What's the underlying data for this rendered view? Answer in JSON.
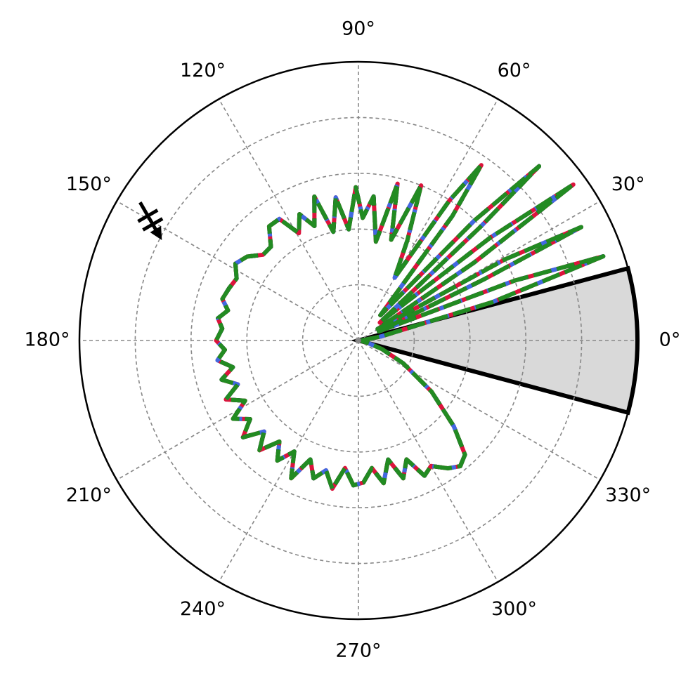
{
  "chart_data": {
    "type": "polar",
    "xlim": [
      0,
      360
    ],
    "xticks": [
      {
        "value": 0,
        "label": "0°"
      },
      {
        "value": 30,
        "label": "30°"
      },
      {
        "value": 60,
        "label": "60°"
      },
      {
        "value": 90,
        "label": "90°"
      },
      {
        "value": 120,
        "label": "120°"
      },
      {
        "value": 150,
        "label": "150°"
      },
      {
        "value": 180,
        "label": "180°"
      },
      {
        "value": 210,
        "label": "210°"
      },
      {
        "value": 240,
        "label": "240°"
      },
      {
        "value": 270,
        "label": "270°"
      },
      {
        "value": 300,
        "label": "300°"
      },
      {
        "value": 330,
        "label": "330°"
      }
    ],
    "ylim": [
      0,
      5
    ],
    "yticks": [
      1,
      2,
      3,
      4
    ],
    "grid": true,
    "wedge": {
      "theta": 0,
      "width": 30,
      "r": 5,
      "color": "#d9d9d9",
      "edgecolor": "#000000"
    },
    "marker": {
      "theta": 150,
      "r": 4.3,
      "color": "#000000"
    },
    "x": [
      0,
      10,
      16,
      19,
      21,
      24,
      26,
      27,
      29,
      31,
      34,
      36,
      38,
      40,
      43,
      44,
      46,
      49,
      53,
      55,
      57,
      60,
      64,
      68,
      72,
      76,
      80,
      84,
      88,
      91,
      95,
      99,
      103,
      107,
      111,
      115,
      119,
      123,
      128,
      133,
      138,
      143,
      148,
      153,
      158,
      163,
      167,
      171,
      175,
      180,
      184,
      188,
      192,
      196,
      200,
      204,
      208,
      212,
      216,
      220,
      224,
      228,
      232,
      236,
      240,
      244,
      248,
      252,
      256,
      260,
      264,
      268,
      272,
      276,
      280,
      284,
      288,
      292,
      296,
      300,
      305,
      309,
      313,
      318,
      325,
      333,
      340,
      347,
      352
    ],
    "series": [
      {
        "color": "#dc143c",
        "dash": "none",
        "values": [
          0.05,
          0.4,
          2.5,
          4.64,
          3.0,
          0.4,
          2.5,
          4.48,
          3.0,
          0.4,
          2.5,
          4.76,
          3.0,
          0.5,
          3.0,
          4.5,
          3.0,
          0.6,
          2.8,
          3.84,
          3.0,
          1.3,
          2.0,
          3.0,
          1.9,
          2.9,
          1.8,
          2.6,
          2.2,
          2.75,
          2.0,
          2.6,
          2.0,
          2.7,
          2.2,
          2.5,
          2.2,
          2.6,
          2.6,
          2.3,
          2.3,
          2.5,
          2.6,
          2.45,
          2.5,
          2.55,
          2.4,
          2.55,
          2.45,
          2.55,
          2.4,
          2.55,
          2.3,
          2.55,
          2.3,
          2.6,
          2.3,
          2.65,
          2.4,
          2.7,
          2.35,
          2.65,
          2.3,
          2.6,
          2.3,
          2.75,
          2.3,
          2.6,
          2.4,
          2.7,
          2.3,
          2.6,
          2.55,
          2.3,
          2.6,
          2.2,
          2.6,
          2.3,
          2.7,
          2.6,
          2.8,
          2.9,
          2.8,
          2.3,
          1.6,
          0.9,
          0.45,
          0.15,
          0.05
        ]
      },
      {
        "color": "#4169e1",
        "dash": "10 14",
        "values": [
          0.05,
          0.4,
          2.5,
          4.64,
          3.0,
          0.4,
          2.5,
          4.48,
          3.0,
          0.4,
          2.5,
          4.76,
          3.0,
          0.5,
          3.0,
          4.5,
          3.0,
          0.6,
          2.8,
          3.84,
          3.0,
          1.3,
          2.0,
          3.0,
          1.9,
          2.9,
          1.8,
          2.6,
          2.2,
          2.75,
          2.0,
          2.6,
          2.0,
          2.7,
          2.2,
          2.5,
          2.2,
          2.6,
          2.6,
          2.3,
          2.3,
          2.5,
          2.6,
          2.45,
          2.5,
          2.55,
          2.4,
          2.55,
          2.45,
          2.55,
          2.4,
          2.55,
          2.3,
          2.55,
          2.3,
          2.6,
          2.3,
          2.65,
          2.4,
          2.7,
          2.35,
          2.65,
          2.3,
          2.6,
          2.3,
          2.75,
          2.3,
          2.6,
          2.4,
          2.7,
          2.3,
          2.6,
          2.55,
          2.3,
          2.6,
          2.2,
          2.6,
          2.3,
          2.7,
          2.6,
          2.8,
          2.9,
          2.8,
          2.3,
          1.6,
          0.9,
          0.45,
          0.15,
          0.05
        ]
      },
      {
        "color": "#000000",
        "dash": "12 22",
        "values": [
          0.05,
          0.4,
          2.5,
          4.64,
          3.0,
          0.4,
          2.5,
          4.48,
          3.0,
          0.4,
          2.5,
          4.76,
          3.0,
          0.5,
          3.0,
          4.5,
          3.0,
          0.6,
          2.8,
          3.84,
          3.0,
          1.3,
          2.0,
          3.0,
          1.9,
          2.9,
          1.8,
          2.6,
          2.2,
          2.75,
          2.0,
          2.6,
          2.0,
          2.7,
          2.2,
          2.5,
          2.2,
          2.6,
          2.6,
          2.3,
          2.3,
          2.5,
          2.6,
          2.45,
          2.5,
          2.55,
          2.4,
          2.55,
          2.45,
          2.55,
          2.4,
          2.55,
          2.3,
          2.55,
          2.3,
          2.6,
          2.3,
          2.65,
          2.4,
          2.7,
          2.35,
          2.65,
          2.3,
          2.6,
          2.3,
          2.75,
          2.3,
          2.6,
          2.4,
          2.7,
          2.3,
          2.6,
          2.55,
          2.3,
          2.6,
          2.2,
          2.6,
          2.3,
          2.7,
          2.6,
          2.8,
          2.9,
          2.8,
          2.3,
          1.6,
          0.9,
          0.45,
          0.15,
          0.05
        ]
      },
      {
        "color": "#228b22",
        "dash": "26 8",
        "values": [
          0.05,
          0.4,
          2.5,
          4.64,
          3.0,
          0.4,
          2.5,
          4.48,
          3.0,
          0.4,
          2.5,
          4.76,
          3.0,
          0.5,
          3.0,
          4.5,
          3.0,
          0.6,
          2.8,
          3.84,
          3.0,
          1.3,
          2.0,
          3.0,
          1.9,
          2.9,
          1.8,
          2.6,
          2.2,
          2.75,
          2.0,
          2.6,
          2.0,
          2.7,
          2.2,
          2.5,
          2.2,
          2.6,
          2.6,
          2.3,
          2.3,
          2.5,
          2.6,
          2.45,
          2.5,
          2.55,
          2.4,
          2.55,
          2.45,
          2.55,
          2.4,
          2.55,
          2.3,
          2.55,
          2.3,
          2.6,
          2.3,
          2.65,
          2.4,
          2.7,
          2.35,
          2.65,
          2.3,
          2.6,
          2.3,
          2.75,
          2.3,
          2.6,
          2.4,
          2.7,
          2.3,
          2.6,
          2.55,
          2.3,
          2.6,
          2.2,
          2.6,
          2.3,
          2.7,
          2.6,
          2.8,
          2.9,
          2.8,
          2.3,
          1.6,
          0.9,
          0.45,
          0.15,
          0.05
        ]
      }
    ]
  }
}
